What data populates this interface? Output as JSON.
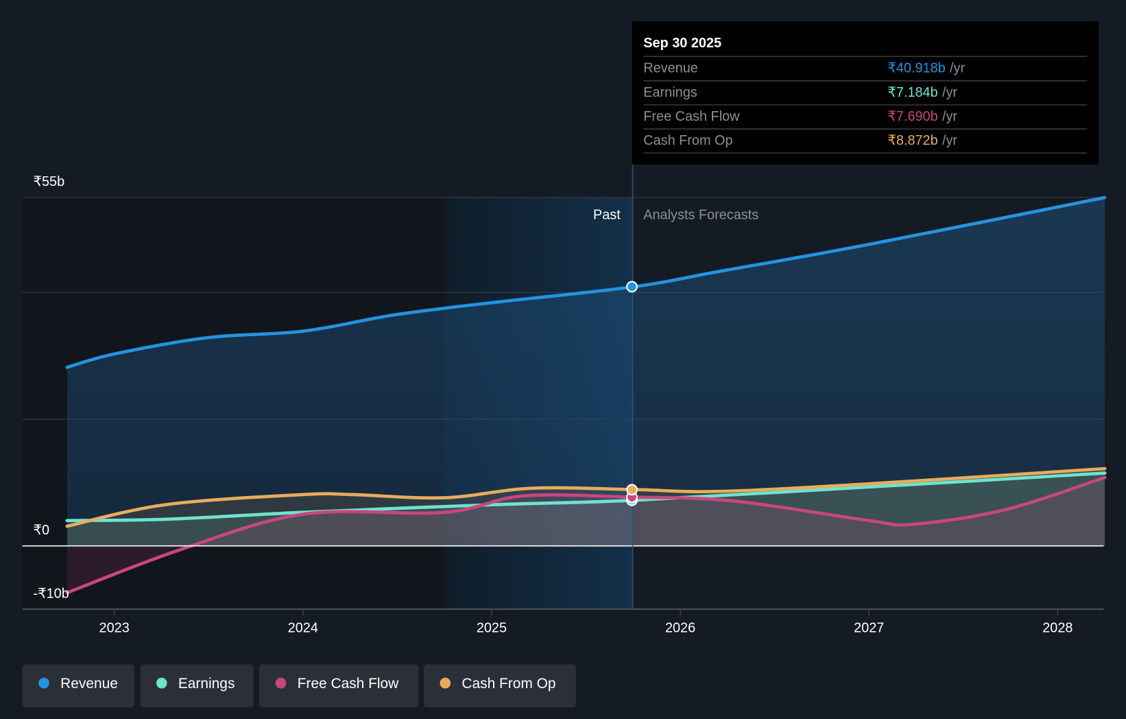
{
  "chart_data": {
    "type": "line",
    "ylim": [
      -10,
      55
    ],
    "xlim": [
      2022.75,
      2028.25
    ],
    "y_ticks": [
      {
        "v": 55,
        "label": "₹55b"
      },
      {
        "v": 0,
        "label": "₹0"
      },
      {
        "v": -10,
        "label": "-₹10b"
      }
    ],
    "gridlines": [
      20,
      40,
      55
    ],
    "x_ticks": [
      {
        "v": 2023,
        "label": "2023"
      },
      {
        "v": 2024,
        "label": "2024"
      },
      {
        "v": 2025,
        "label": "2025"
      },
      {
        "v": 2026,
        "label": "2026"
      },
      {
        "v": 2027,
        "label": "2027"
      },
      {
        "v": 2028,
        "label": "2028"
      }
    ],
    "past_label": "Past",
    "forecast_label": "Analysts Forecasts",
    "present_x": 2025.75,
    "past_shade_start": 2024.75,
    "series": [
      {
        "name": "Revenue",
        "color": "#2394df",
        "x": [
          2022.75,
          2023,
          2023.5,
          2024,
          2024.49,
          2025,
          2025.75,
          2026.2,
          2027,
          2028.25
        ],
        "values": [
          28.2,
          30.3,
          32.9,
          33.9,
          36.5,
          38.4,
          40.9,
          43.3,
          47.6,
          55
        ]
      },
      {
        "name": "Earnings",
        "color": "#6ee3cf",
        "x": [
          2022.75,
          2023.27,
          2024,
          2025,
          2025.75,
          2027,
          2028.25
        ],
        "values": [
          4.0,
          4.2,
          5.3,
          6.5,
          7.2,
          9.3,
          11.5
        ]
      },
      {
        "name": "Free Cash Flow",
        "color": "#c8467f",
        "x": [
          2022.75,
          2023.35,
          2024,
          2024.75,
          2025.17,
          2025.75,
          2026.28,
          2027,
          2027.23,
          2027.72,
          2028.25
        ],
        "values": [
          -7.4,
          -0.6,
          5.0,
          5.3,
          7.9,
          7.7,
          7.1,
          4.0,
          3.4,
          5.7,
          10.8
        ]
      },
      {
        "name": "Cash From Op",
        "color": "#e8ac5c",
        "x": [
          2022.75,
          2023.27,
          2024,
          2024.26,
          2024.75,
          2025.21,
          2025.75,
          2026.2,
          2027,
          2028.25
        ],
        "values": [
          3.1,
          6.5,
          8.1,
          8.1,
          7.6,
          9.1,
          8.9,
          8.6,
          9.8,
          12.2
        ]
      }
    ]
  },
  "tooltip": {
    "date": "Sep 30 2025",
    "rows": [
      {
        "label": "Revenue",
        "value": "₹40.918b",
        "unit": "/yr",
        "color": "#2394df"
      },
      {
        "label": "Earnings",
        "value": "₹7.184b",
        "unit": "/yr",
        "color": "#6ee3cf"
      },
      {
        "label": "Free Cash Flow",
        "value": "₹7.690b",
        "unit": "/yr",
        "color": "#c8467f"
      },
      {
        "label": "Cash From Op",
        "value": "₹8.872b",
        "unit": "/yr",
        "color": "#e8ac5c"
      }
    ]
  },
  "legend": [
    {
      "label": "Revenue",
      "color": "#2394df"
    },
    {
      "label": "Earnings",
      "color": "#6ee3cf"
    },
    {
      "label": "Free Cash Flow",
      "color": "#c8467f"
    },
    {
      "label": "Cash From Op",
      "color": "#e8ac5c"
    }
  ]
}
